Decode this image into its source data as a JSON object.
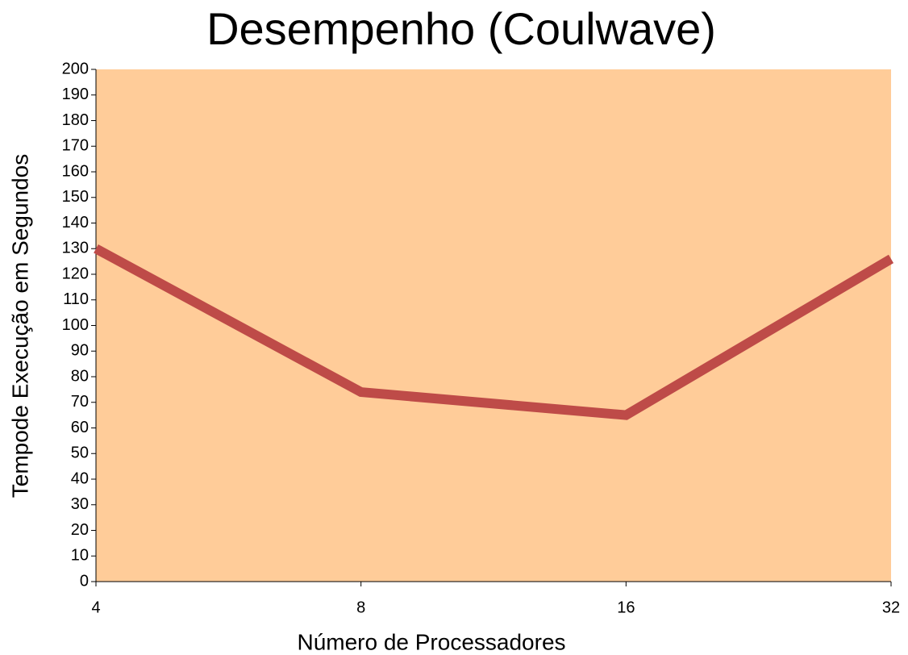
{
  "chart_data": {
    "type": "line",
    "title": "Desempenho (Coulwave)",
    "x_label": "Número de Processadores",
    "y_label": "Tempode Execução em Segundos",
    "categories": [
      "4",
      "8",
      "16",
      "32"
    ],
    "series": [
      {
        "name": "Coulwave",
        "color": "#be4b48",
        "values": [
          130,
          74,
          65,
          126
        ]
      }
    ],
    "ylim": [
      0,
      200
    ],
    "yticks": [
      0,
      10,
      20,
      30,
      40,
      50,
      60,
      70,
      80,
      90,
      100,
      110,
      120,
      130,
      140,
      150,
      160,
      170,
      180,
      190,
      200
    ],
    "plot_background": "#ffcc99",
    "grid": false
  }
}
